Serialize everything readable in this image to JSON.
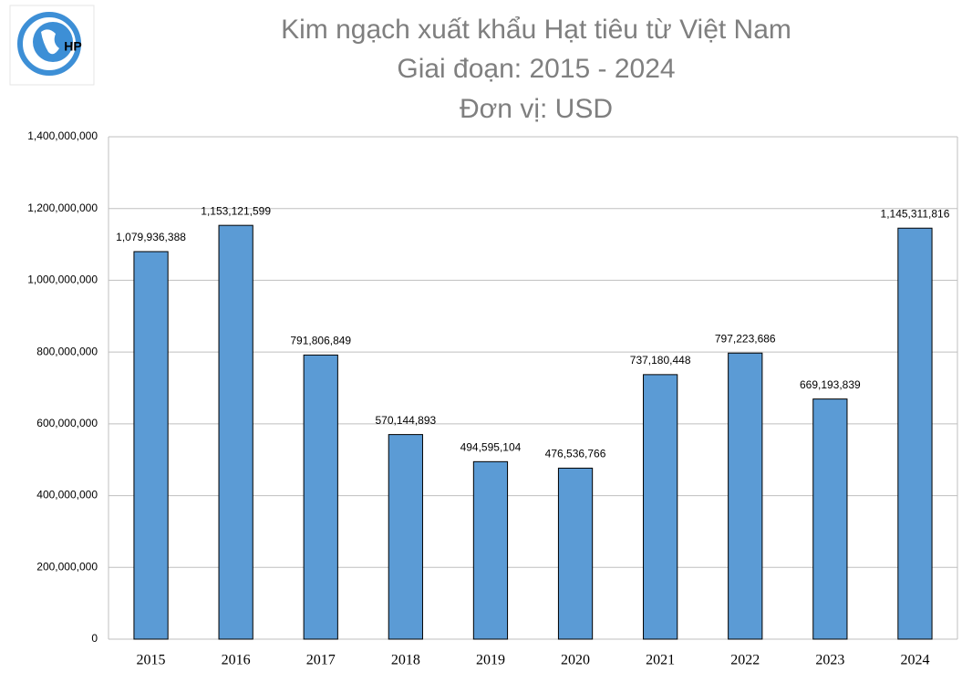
{
  "logo": "HP",
  "chart_data": {
    "type": "bar",
    "title": [
      "Kim ngạch xuất khẩu Hạt tiêu từ Việt Nam",
      "Giai đoạn: 2015 - 2024",
      "Đơn vị: USD"
    ],
    "categories": [
      "2015",
      "2016",
      "2017",
      "2018",
      "2019",
      "2020",
      "2021",
      "2022",
      "2023",
      "2024"
    ],
    "values": [
      1079936388,
      1153121599,
      791806849,
      570144893,
      494595104,
      476536766,
      737180448,
      797223686,
      669193839,
      1145311816
    ],
    "value_labels": [
      "1,079,936,388",
      "1,153,121,599",
      "791,806,849",
      "570,144,893",
      "494,595,104",
      "476,536,766",
      "737,180,448",
      "797,223,686",
      "669,193,839",
      "1,145,311,816"
    ],
    "color": "#5b9bd5",
    "ylim": [
      0,
      1400000000
    ],
    "yticks": [
      0,
      {
        "value": 200000000,
        "label": "200,000,000"
      },
      {
        "value": 400000000,
        "label": "400,000,000"
      },
      {
        "value": 600000000,
        "label": "600,000,000"
      },
      {
        "value": 800000000,
        "label": "800,000,000"
      },
      {
        "value": 1000000000,
        "label": "1,000,000,000"
      },
      {
        "value": 1200000000,
        "label": "1,200,000,000"
      },
      {
        "value": 1400000000,
        "label": "1,400,000,000"
      }
    ],
    "grid": true
  }
}
